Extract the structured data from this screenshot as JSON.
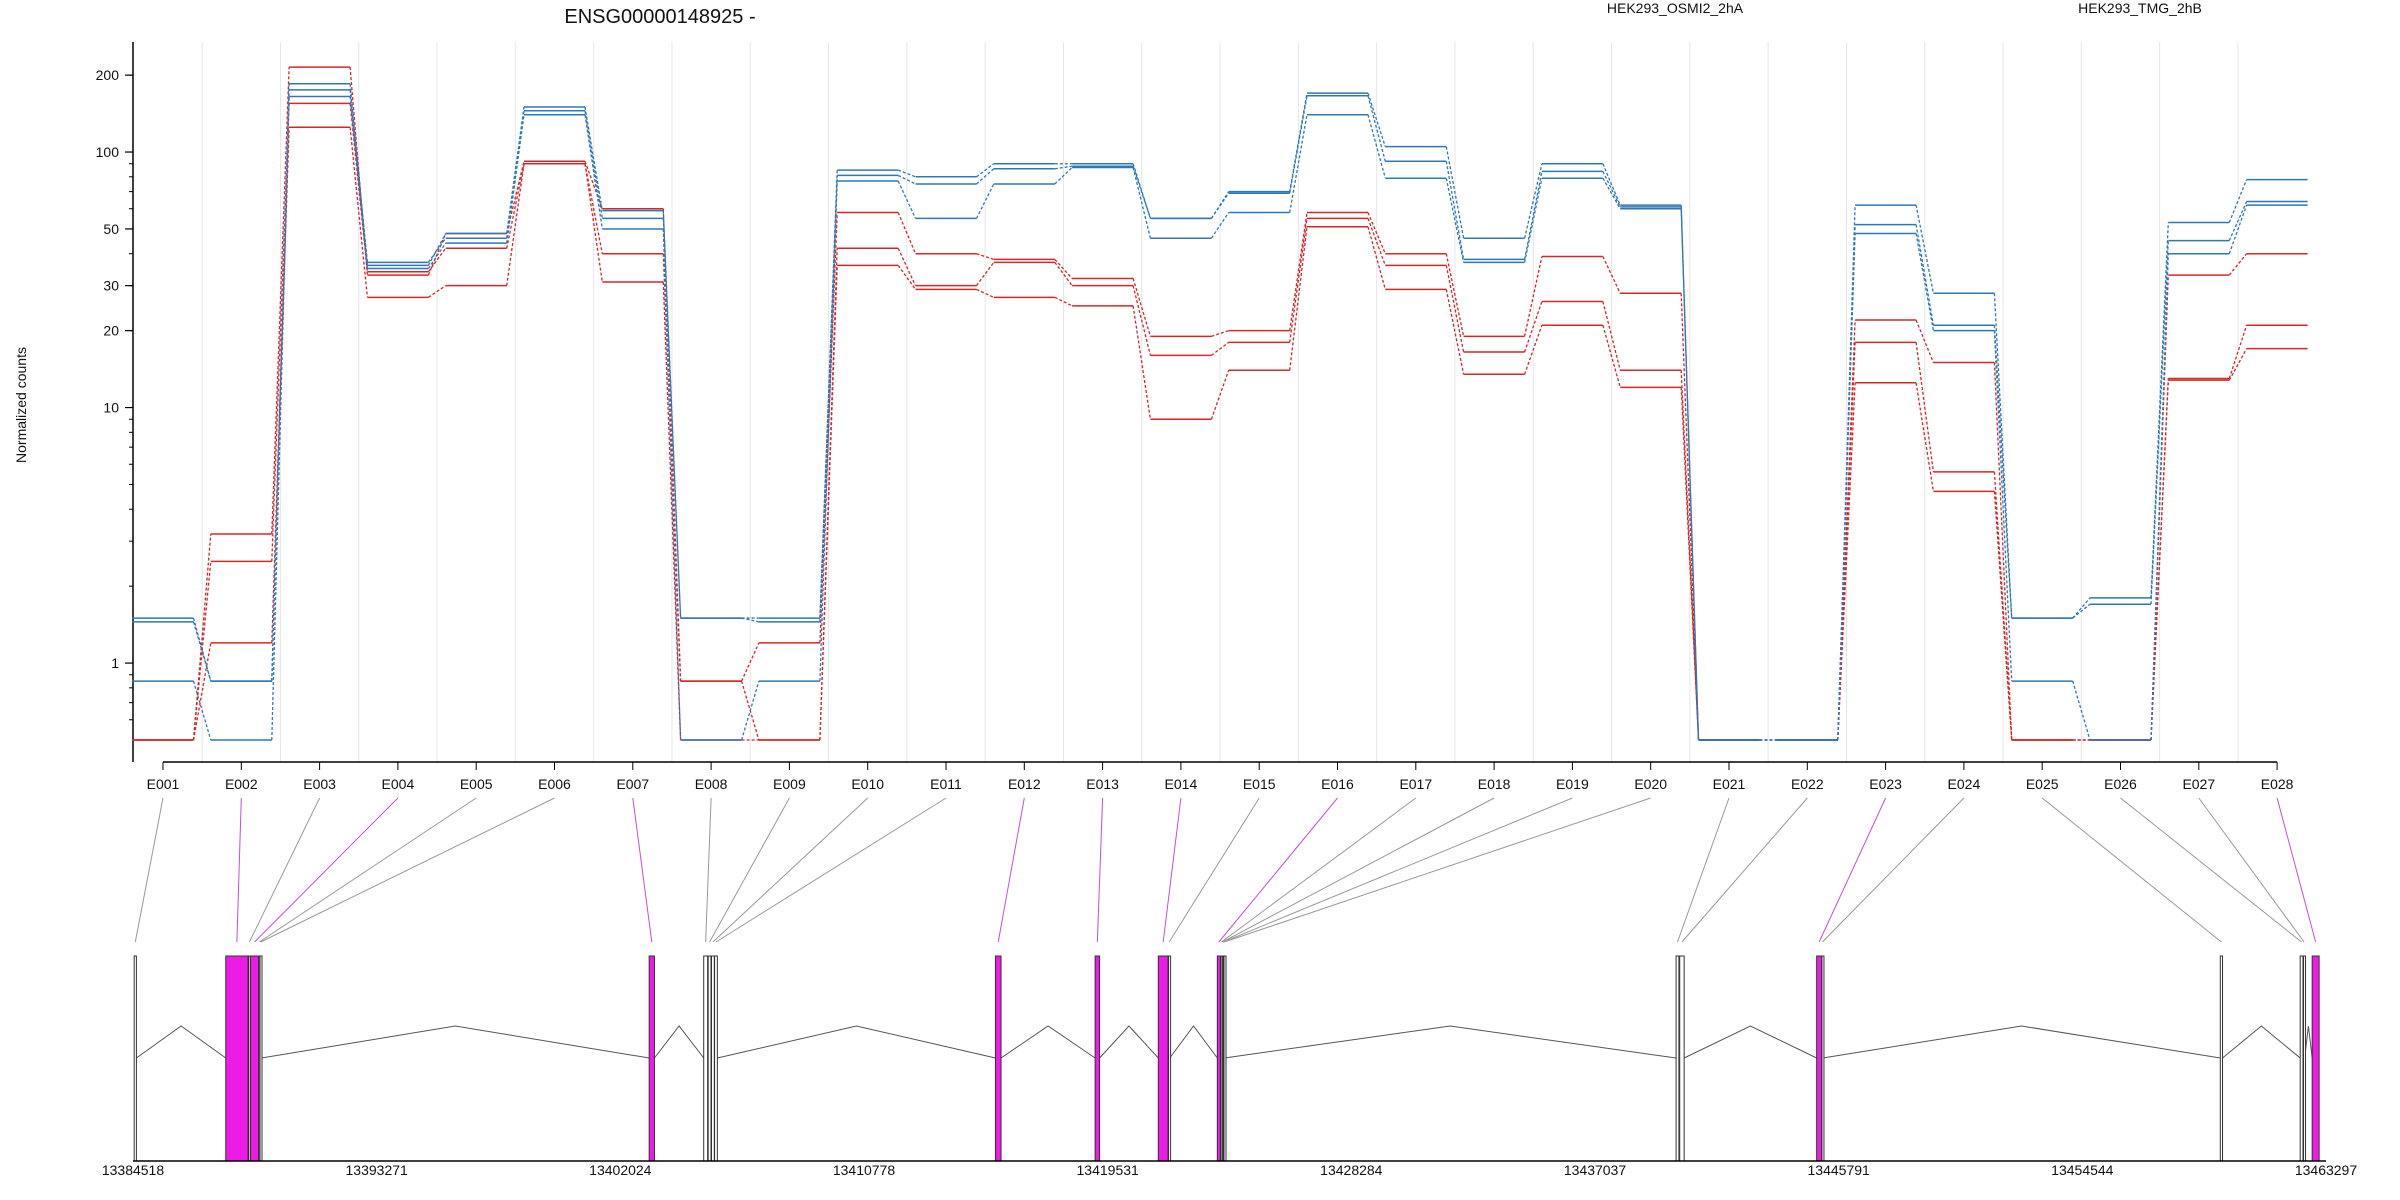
{
  "title": "ENSG00000148925 -",
  "ylabel": "Normalized counts",
  "legend": [
    {
      "name": "HEK293_OSMI2_2hA",
      "color": "#d62728"
    },
    {
      "name": "HEK293_TMG_2hB",
      "color": "#2f78b8"
    }
  ],
  "chart_data": [
    {
      "type": "line",
      "scale": "log",
      "ylim": [
        0.5,
        260
      ],
      "ticks": [
        1,
        10,
        20,
        30,
        50,
        100,
        200
      ],
      "grid": "x",
      "categories": [
        "E001",
        "E002",
        "E003",
        "E004",
        "E005",
        "E006",
        "E007",
        "E008",
        "E009",
        "E010",
        "E011",
        "E012",
        "E013",
        "E014",
        "E015",
        "E016",
        "E017",
        "E018",
        "E019",
        "E020",
        "E021",
        "E022",
        "E023",
        "E024",
        "E025",
        "E026",
        "E027",
        "E028"
      ],
      "series": [
        {
          "name": "HEK293_OSMI2_2hA",
          "color": "#d62728",
          "values": [
            0.5,
            3.2,
            215,
            33,
            48,
            92,
            60,
            0.85,
            1.2,
            58,
            40,
            38,
            32,
            19,
            20,
            58,
            40,
            19,
            39,
            28,
            0.5,
            0.5,
            22,
            15,
            0.5,
            0.5,
            33,
            40
          ]
        },
        {
          "name": "HEK293_OSMI2_2hA",
          "color": "#d62728",
          "values": [
            0.5,
            2.5,
            155,
            34,
            42,
            90,
            40,
            0.85,
            0.5,
            42,
            30,
            37,
            30,
            16,
            18,
            55,
            36,
            16.5,
            26,
            14,
            0.5,
            0.5,
            18,
            5.6,
            0.5,
            0.5,
            13,
            21
          ]
        },
        {
          "name": "HEK293_OSMI2_2hA",
          "color": "#d62728",
          "values": [
            0.5,
            1.2,
            125,
            27,
            30,
            90,
            31,
            0.5,
            0.5,
            36,
            29,
            27,
            25,
            9,
            14,
            51,
            29,
            13.5,
            21,
            12,
            0.5,
            0.5,
            12.5,
            4.7,
            0.5,
            0.5,
            12.8,
            17
          ]
        },
        {
          "name": "HEK293_TMG_2hB",
          "color": "#2f78b8",
          "values": [
            1.5,
            0.85,
            185,
            36,
            48,
            150,
            59,
            1.5,
            1.5,
            85,
            80,
            90,
            90,
            55,
            70,
            170,
            105,
            46,
            90,
            62,
            0.5,
            0.5,
            62,
            28,
            1.5,
            1.8,
            53,
            78
          ]
        },
        {
          "name": "HEK293_TMG_2hB",
          "color": "#2f78b8",
          "values": [
            1.45,
            0.85,
            175,
            37,
            46,
            145,
            55,
            1.5,
            1.45,
            81,
            75,
            86,
            88,
            55,
            69,
            166,
            92,
            38,
            84,
            61,
            0.5,
            0.5,
            52,
            21,
            1.5,
            1.7,
            45,
            64
          ]
        },
        {
          "name": "HEK293_TMG_2hB",
          "color": "#2f78b8",
          "values": [
            0.85,
            0.5,
            165,
            35,
            44,
            140,
            50,
            0.5,
            0.85,
            77,
            55,
            75,
            87,
            46,
            58,
            140,
            79,
            37,
            79,
            60,
            0.5,
            0.5,
            48,
            20,
            0.85,
            0.5,
            40,
            62
          ]
        }
      ]
    },
    {
      "type": "gene-model",
      "coordinate_ticks": [
        "13384518",
        "13393271",
        "13402024",
        "13410778",
        "13419531",
        "13428284",
        "13437037",
        "13445791",
        "13454544",
        "13463297"
      ],
      "range": [
        13384518,
        13463297
      ],
      "exons": [
        {
          "id": "E001",
          "start": 13384560,
          "end": 13384640,
          "highlight": false
        },
        {
          "id": "E002",
          "start": 13387850,
          "end": 13388650,
          "highlight": true
        },
        {
          "id": "E003",
          "start": 13388680,
          "end": 13388720,
          "highlight": false
        },
        {
          "id": "E004",
          "start": 13388740,
          "end": 13389030,
          "highlight": true
        },
        {
          "id": "E005",
          "start": 13389040,
          "end": 13389070,
          "highlight": false
        },
        {
          "id": "E006",
          "start": 13389080,
          "end": 13389130,
          "highlight": false
        },
        {
          "id": "E007",
          "start": 13403060,
          "end": 13403250,
          "highlight": true
        },
        {
          "id": "E008",
          "start": 13405020,
          "end": 13405160,
          "highlight": false
        },
        {
          "id": "E009",
          "start": 13405180,
          "end": 13405280,
          "highlight": false
        },
        {
          "id": "E010",
          "start": 13405300,
          "end": 13405400,
          "highlight": false
        },
        {
          "id": "E011",
          "start": 13405410,
          "end": 13405510,
          "highlight": false
        },
        {
          "id": "E012",
          "start": 13415500,
          "end": 13415700,
          "highlight": true
        },
        {
          "id": "E013",
          "start": 13419080,
          "end": 13419240,
          "highlight": true
        },
        {
          "id": "E014",
          "start": 13421350,
          "end": 13421700,
          "highlight": true
        },
        {
          "id": "E015",
          "start": 13421720,
          "end": 13421760,
          "highlight": false
        },
        {
          "id": "E016",
          "start": 13423470,
          "end": 13423580,
          "highlight": true
        },
        {
          "id": "E017",
          "start": 13423600,
          "end": 13423640,
          "highlight": false
        },
        {
          "id": "E018",
          "start": 13423650,
          "end": 13423670,
          "highlight": false
        },
        {
          "id": "E019",
          "start": 13423680,
          "end": 13423700,
          "highlight": false
        },
        {
          "id": "E020",
          "start": 13423710,
          "end": 13423725,
          "highlight": false
        },
        {
          "id": "E021",
          "start": 13439950,
          "end": 13440050,
          "highlight": false
        },
        {
          "id": "E022",
          "start": 13440080,
          "end": 13440240,
          "highlight": false
        },
        {
          "id": "E023",
          "start": 13445000,
          "end": 13445180,
          "highlight": true
        },
        {
          "id": "E024",
          "start": 13445190,
          "end": 13445220,
          "highlight": false
        },
        {
          "id": "E025",
          "start": 13459500,
          "end": 13459580,
          "highlight": false
        },
        {
          "id": "E026",
          "start": 13462370,
          "end": 13462470,
          "highlight": false
        },
        {
          "id": "E027",
          "start": 13462490,
          "end": 13462530,
          "highlight": false
        },
        {
          "id": "E028",
          "start": 13462800,
          "end": 13463050,
          "highlight": true
        }
      ]
    }
  ]
}
